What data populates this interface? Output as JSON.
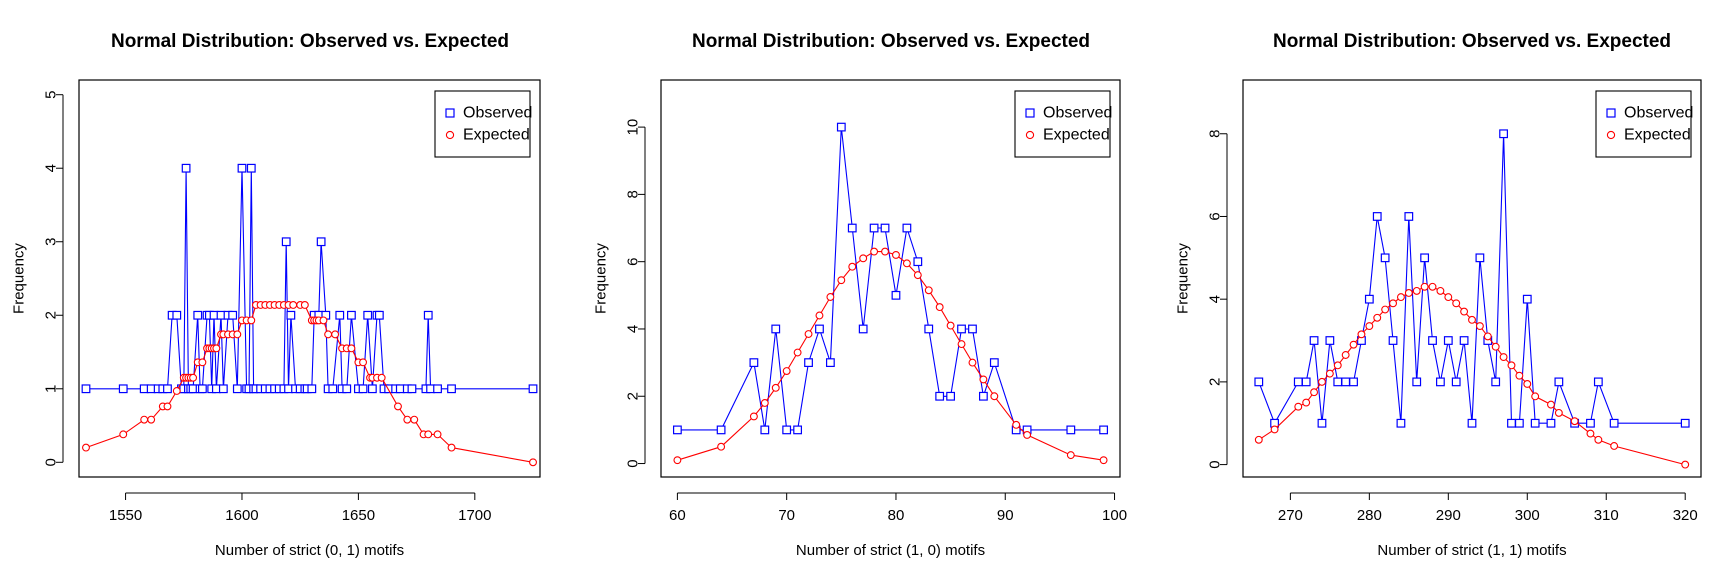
{
  "colors": {
    "observed": "#0000ff",
    "expected": "#ff0000",
    "axis": "#000000",
    "background": "#ffffff"
  },
  "chart_data": [
    {
      "type": "line",
      "title": "Normal Distribution: Observed vs. Expected",
      "xlabel": "Number of strict (0, 1) motifs",
      "ylabel": "Frequency",
      "xlim": [
        1530,
        1728
      ],
      "ylim": [
        -0.2,
        5.2
      ],
      "xticks": [
        1550,
        1600,
        1650,
        1700
      ],
      "yticks": [
        0,
        1,
        2,
        3,
        4,
        5
      ],
      "grid": false,
      "legend": {
        "position": "top-right",
        "entries": [
          "Observed",
          "Expected"
        ]
      },
      "series": [
        {
          "name": "Observed",
          "marker": "square",
          "x": [
            1533,
            1549,
            1558,
            1561,
            1564,
            1566,
            1568,
            1570,
            1572,
            1574,
            1575,
            1576,
            1577,
            1578,
            1579,
            1581,
            1582,
            1583,
            1585,
            1586,
            1587,
            1588,
            1589,
            1591,
            1592,
            1594,
            1596,
            1598,
            1600,
            1602,
            1603,
            1604,
            1605,
            1606,
            1608,
            1610,
            1612,
            1614,
            1616,
            1618,
            1619,
            1620,
            1621,
            1623,
            1625,
            1627,
            1628,
            1630,
            1631,
            1633,
            1634,
            1636,
            1637,
            1639,
            1642,
            1643,
            1645,
            1647,
            1650,
            1652,
            1654,
            1656,
            1658,
            1659,
            1661,
            1663,
            1666,
            1668,
            1671,
            1673,
            1679,
            1680,
            1681,
            1684,
            1690,
            1725
          ],
          "y": [
            1,
            1,
            1,
            1,
            1,
            1,
            1,
            2,
            2,
            1,
            1,
            4,
            1,
            1,
            1,
            2,
            1,
            1,
            2,
            2,
            1,
            2,
            1,
            2,
            1,
            2,
            2,
            1,
            4,
            1,
            1,
            4,
            1,
            1,
            1,
            1,
            1,
            1,
            1,
            1,
            3,
            1,
            2,
            1,
            1,
            1,
            1,
            1,
            2,
            2,
            3,
            2,
            1,
            1,
            2,
            1,
            1,
            2,
            1,
            1,
            2,
            1,
            2,
            2,
            1,
            1,
            1,
            1,
            1,
            1,
            1,
            2,
            1,
            1,
            1,
            1
          ]
        },
        {
          "name": "Expected",
          "marker": "circle",
          "x": [
            1533,
            1549,
            1558,
            1561,
            1566,
            1568,
            1572,
            1575,
            1576,
            1577,
            1578,
            1579,
            1581,
            1583,
            1585,
            1586,
            1587,
            1588,
            1589,
            1591,
            1592,
            1594,
            1596,
            1598,
            1600,
            1602,
            1604,
            1606,
            1608,
            1610,
            1612,
            1614,
            1616,
            1618,
            1620,
            1622,
            1625,
            1627,
            1630,
            1631,
            1632,
            1633,
            1635,
            1637,
            1640,
            1643,
            1645,
            1647,
            1650,
            1652,
            1655,
            1656,
            1658,
            1660,
            1667,
            1671,
            1674,
            1678,
            1680,
            1684,
            1690,
            1725
          ],
          "y": [
            0.2,
            0.38,
            0.58,
            0.58,
            0.76,
            0.76,
            0.97,
            1.15,
            1.15,
            1.15,
            1.15,
            1.15,
            1.36,
            1.36,
            1.55,
            1.55,
            1.55,
            1.55,
            1.55,
            1.74,
            1.74,
            1.74,
            1.74,
            1.74,
            1.93,
            1.93,
            1.93,
            2.14,
            2.14,
            2.14,
            2.14,
            2.14,
            2.14,
            2.14,
            2.14,
            2.14,
            2.14,
            2.14,
            1.93,
            1.93,
            1.93,
            1.93,
            1.93,
            1.74,
            1.74,
            1.55,
            1.55,
            1.55,
            1.36,
            1.36,
            1.15,
            1.15,
            1.15,
            1.15,
            0.76,
            0.58,
            0.58,
            0.38,
            0.38,
            0.38,
            0.2,
            0
          ]
        }
      ]
    },
    {
      "type": "line",
      "title": "Normal Distribution: Observed vs. Expected",
      "xlabel": "Number of strict (1, 0) motifs",
      "ylabel": "Frequency",
      "xlim": [
        58.5,
        100.5
      ],
      "ylim": [
        -0.4,
        11.4
      ],
      "xticks": [
        60,
        70,
        80,
        90,
        100
      ],
      "yticks": [
        0,
        2,
        4,
        6,
        8,
        10
      ],
      "grid": false,
      "legend": {
        "position": "top-right",
        "entries": [
          "Observed",
          "Expected"
        ]
      },
      "series": [
        {
          "name": "Observed",
          "marker": "square",
          "x": [
            60,
            64,
            67,
            68,
            69,
            70,
            71,
            72,
            73,
            74,
            75,
            76,
            77,
            78,
            79,
            80,
            81,
            82,
            83,
            84,
            85,
            86,
            87,
            88,
            89,
            91,
            92,
            96,
            99
          ],
          "y": [
            1,
            1,
            3,
            1,
            4,
            1,
            1,
            3,
            4,
            3,
            10,
            7,
            4,
            7,
            7,
            5,
            7,
            6,
            4,
            2,
            2,
            4,
            4,
            2,
            3,
            1,
            1,
            1,
            1
          ]
        },
        {
          "name": "Expected",
          "marker": "circle",
          "x": [
            60,
            64,
            67,
            68,
            69,
            70,
            71,
            72,
            73,
            74,
            75,
            76,
            77,
            78,
            79,
            80,
            81,
            82,
            83,
            84,
            85,
            86,
            87,
            88,
            89,
            91,
            92,
            96,
            99
          ],
          "y": [
            0.1,
            0.5,
            1.4,
            1.8,
            2.25,
            2.75,
            3.3,
            3.85,
            4.4,
            4.95,
            5.45,
            5.85,
            6.1,
            6.3,
            6.3,
            6.2,
            5.95,
            5.6,
            5.15,
            4.65,
            4.1,
            3.55,
            3.0,
            2.5,
            2.0,
            1.15,
            0.85,
            0.25,
            0.1
          ]
        }
      ]
    },
    {
      "type": "line",
      "title": "Normal Distribution: Observed vs. Expected",
      "xlabel": "Number of strict (1, 1) motifs",
      "ylabel": "Frequency",
      "xlim": [
        264,
        322
      ],
      "ylim": [
        -0.3,
        9.3
      ],
      "xticks": [
        270,
        280,
        290,
        300,
        310,
        320
      ],
      "yticks": [
        0,
        2,
        4,
        6,
        8
      ],
      "grid": false,
      "legend": {
        "position": "top-right",
        "entries": [
          "Observed",
          "Expected"
        ]
      },
      "series": [
        {
          "name": "Observed",
          "marker": "square",
          "x": [
            266,
            268,
            271,
            272,
            273,
            274,
            275,
            276,
            277,
            278,
            279,
            280,
            281,
            282,
            283,
            284,
            285,
            286,
            287,
            288,
            289,
            290,
            291,
            292,
            293,
            294,
            295,
            296,
            297,
            298,
            299,
            300,
            301,
            303,
            304,
            306,
            308,
            309,
            311,
            320
          ],
          "y": [
            2,
            1,
            2,
            2,
            3,
            1,
            3,
            2,
            2,
            2,
            3,
            4,
            6,
            5,
            3,
            1,
            6,
            2,
            5,
            3,
            2,
            3,
            2,
            3,
            1,
            5,
            3,
            2,
            8,
            1,
            1,
            4,
            1,
            1,
            2,
            1,
            1,
            2,
            1,
            1
          ]
        },
        {
          "name": "Expected",
          "marker": "circle",
          "x": [
            266,
            268,
            271,
            272,
            273,
            274,
            275,
            276,
            277,
            278,
            279,
            280,
            281,
            282,
            283,
            284,
            285,
            286,
            287,
            288,
            289,
            290,
            291,
            292,
            293,
            294,
            295,
            296,
            297,
            298,
            299,
            300,
            301,
            303,
            304,
            306,
            308,
            309,
            311,
            320
          ],
          "y": [
            0.6,
            0.85,
            1.4,
            1.5,
            1.75,
            2.0,
            2.2,
            2.4,
            2.65,
            2.9,
            3.15,
            3.35,
            3.55,
            3.75,
            3.9,
            4.05,
            4.15,
            4.2,
            4.3,
            4.3,
            4.2,
            4.05,
            3.9,
            3.7,
            3.5,
            3.35,
            3.1,
            2.85,
            2.6,
            2.4,
            2.15,
            1.95,
            1.65,
            1.45,
            1.25,
            1.05,
            0.75,
            0.6,
            0.45,
            0
          ]
        }
      ]
    }
  ]
}
